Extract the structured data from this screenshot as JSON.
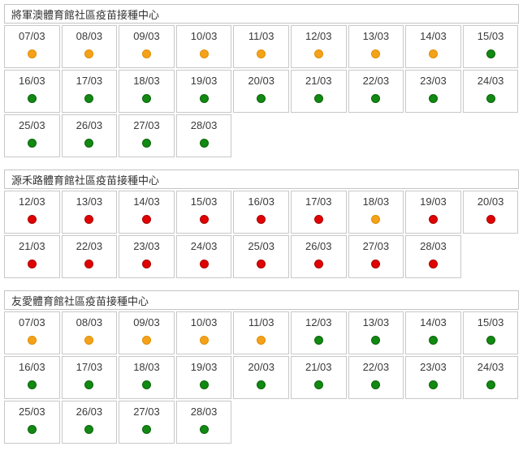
{
  "status_colors": {
    "orange": {
      "fill": "#f5a21b",
      "border": "#e08e00"
    },
    "green": {
      "fill": "#128912",
      "border": "#0a650a"
    },
    "red": {
      "fill": "#e00000",
      "border": "#aa0000"
    }
  },
  "cell_border_color": "#c8c8c8",
  "sections": [
    {
      "title": "將軍澳體育館社區疫苗接種中心",
      "cells": [
        {
          "date": "07/03",
          "status": "orange"
        },
        {
          "date": "08/03",
          "status": "orange"
        },
        {
          "date": "09/03",
          "status": "orange"
        },
        {
          "date": "10/03",
          "status": "orange"
        },
        {
          "date": "11/03",
          "status": "orange"
        },
        {
          "date": "12/03",
          "status": "orange"
        },
        {
          "date": "13/03",
          "status": "orange"
        },
        {
          "date": "14/03",
          "status": "orange"
        },
        {
          "date": "15/03",
          "status": "green"
        },
        {
          "date": "16/03",
          "status": "green"
        },
        {
          "date": "17/03",
          "status": "green"
        },
        {
          "date": "18/03",
          "status": "green"
        },
        {
          "date": "19/03",
          "status": "green"
        },
        {
          "date": "20/03",
          "status": "green"
        },
        {
          "date": "21/03",
          "status": "green"
        },
        {
          "date": "22/03",
          "status": "green"
        },
        {
          "date": "23/03",
          "status": "green"
        },
        {
          "date": "24/03",
          "status": "green"
        },
        {
          "date": "25/03",
          "status": "green"
        },
        {
          "date": "26/03",
          "status": "green"
        },
        {
          "date": "27/03",
          "status": "green"
        },
        {
          "date": "28/03",
          "status": "green"
        }
      ]
    },
    {
      "title": "源禾路體育館社區疫苗接種中心",
      "cells": [
        {
          "date": "12/03",
          "status": "red"
        },
        {
          "date": "13/03",
          "status": "red"
        },
        {
          "date": "14/03",
          "status": "red"
        },
        {
          "date": "15/03",
          "status": "red"
        },
        {
          "date": "16/03",
          "status": "red"
        },
        {
          "date": "17/03",
          "status": "red"
        },
        {
          "date": "18/03",
          "status": "orange"
        },
        {
          "date": "19/03",
          "status": "red"
        },
        {
          "date": "20/03",
          "status": "red"
        },
        {
          "date": "21/03",
          "status": "red"
        },
        {
          "date": "22/03",
          "status": "red"
        },
        {
          "date": "23/03",
          "status": "red"
        },
        {
          "date": "24/03",
          "status": "red"
        },
        {
          "date": "25/03",
          "status": "red"
        },
        {
          "date": "26/03",
          "status": "red"
        },
        {
          "date": "27/03",
          "status": "red"
        },
        {
          "date": "28/03",
          "status": "red"
        }
      ]
    },
    {
      "title": "友愛體育館社區疫苗接種中心",
      "cells": [
        {
          "date": "07/03",
          "status": "orange"
        },
        {
          "date": "08/03",
          "status": "orange"
        },
        {
          "date": "09/03",
          "status": "orange"
        },
        {
          "date": "10/03",
          "status": "orange"
        },
        {
          "date": "11/03",
          "status": "orange"
        },
        {
          "date": "12/03",
          "status": "green"
        },
        {
          "date": "13/03",
          "status": "green"
        },
        {
          "date": "14/03",
          "status": "green"
        },
        {
          "date": "15/03",
          "status": "green"
        },
        {
          "date": "16/03",
          "status": "green"
        },
        {
          "date": "17/03",
          "status": "green"
        },
        {
          "date": "18/03",
          "status": "green"
        },
        {
          "date": "19/03",
          "status": "green"
        },
        {
          "date": "20/03",
          "status": "green"
        },
        {
          "date": "21/03",
          "status": "green"
        },
        {
          "date": "22/03",
          "status": "green"
        },
        {
          "date": "23/03",
          "status": "green"
        },
        {
          "date": "24/03",
          "status": "green"
        },
        {
          "date": "25/03",
          "status": "green"
        },
        {
          "date": "26/03",
          "status": "green"
        },
        {
          "date": "27/03",
          "status": "green"
        },
        {
          "date": "28/03",
          "status": "green"
        }
      ]
    }
  ]
}
